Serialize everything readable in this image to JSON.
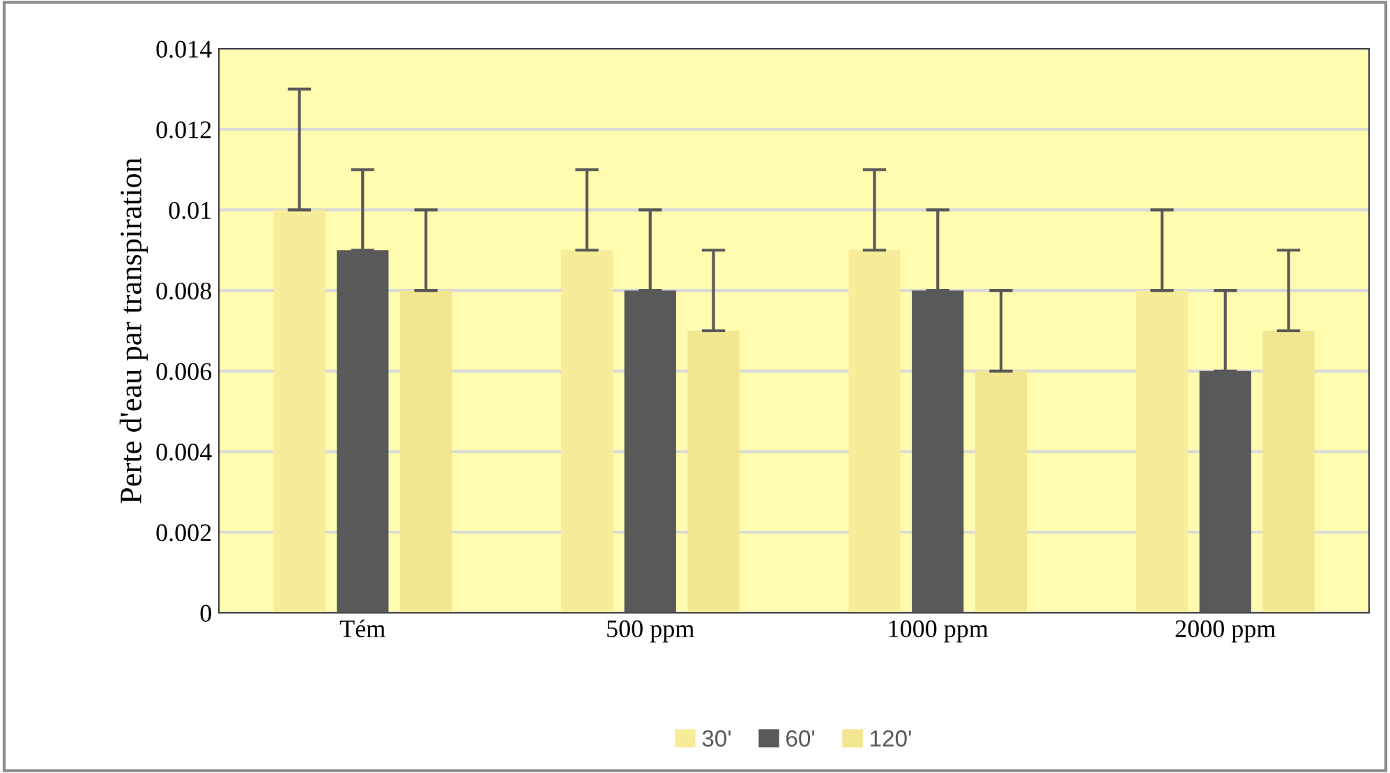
{
  "chart_data": {
    "type": "bar",
    "ylabel": "Perte d'eau par transpiration",
    "categories": [
      "Tém",
      "500 ppm",
      "1000 ppm",
      "2000 ppm"
    ],
    "series": [
      {
        "name": "30'",
        "color": "#f7ec9a",
        "values": [
          0.01,
          0.009,
          0.009,
          0.008
        ],
        "errors": [
          [
            0.01,
            0.013
          ],
          [
            0.009,
            0.011
          ],
          [
            0.009,
            0.011
          ],
          [
            0.008,
            0.01
          ]
        ]
      },
      {
        "name": "60'",
        "color": "#595959",
        "values": [
          0.009,
          0.008,
          0.008,
          0.006
        ],
        "errors": [
          [
            0.009,
            0.011
          ],
          [
            0.008,
            0.01
          ],
          [
            0.008,
            0.01
          ],
          [
            0.006,
            0.008
          ]
        ]
      },
      {
        "name": "120'",
        "color": "#f2e690",
        "values": [
          0.008,
          0.007,
          0.006,
          0.007
        ],
        "errors": [
          [
            0.008,
            0.01
          ],
          [
            0.007,
            0.009
          ],
          [
            0.006,
            0.008
          ],
          [
            0.007,
            0.009
          ]
        ]
      }
    ],
    "ylim": [
      0,
      0.014
    ],
    "yticks": [
      0,
      0.002,
      0.004,
      0.006,
      0.008,
      0.01,
      0.012,
      0.014
    ],
    "grid": "y",
    "legend": "bottom"
  }
}
